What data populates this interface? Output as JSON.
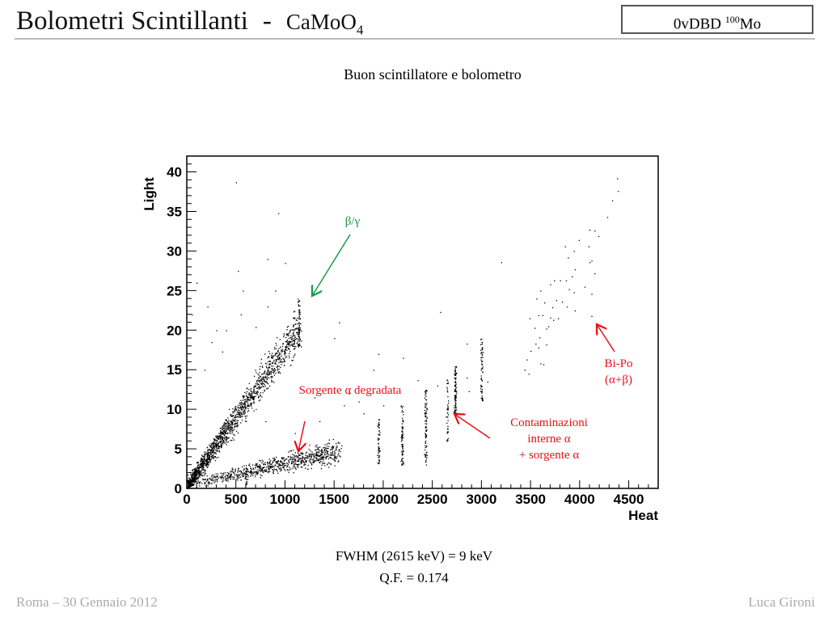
{
  "header": {
    "title": "Bolometri Scintillanti",
    "dash": "-",
    "formula": "CaMoO",
    "formula_sub": "4",
    "badge_text": "0vDBD ",
    "badge_sup": "100",
    "badge_tail": "Mo"
  },
  "subtitle": "Buon scintillatore e bolometro",
  "results": {
    "fwhm": "FWHM (2615 keV) = 9 keV",
    "qf": "Q.F. = 0.174"
  },
  "footer": {
    "left": "Roma – 30 Gennaio 2012",
    "right": "Luca Gironi"
  },
  "chart_data": {
    "type": "scatter",
    "xlabel": "Heat",
    "ylabel": "Light",
    "xlim": [
      0,
      4800
    ],
    "ylim": [
      0,
      42
    ],
    "xticks": [
      0,
      500,
      1000,
      1500,
      2000,
      2500,
      3000,
      3500,
      4000,
      4500
    ],
    "yticks": [
      0,
      5,
      10,
      15,
      20,
      25,
      30,
      35,
      40
    ],
    "grid": false,
    "bands": [
      {
        "name": "beta-gamma",
        "x": [
          0,
          1150
        ],
        "intercept": 0.3,
        "slope": 0.0175,
        "spread": 0.9,
        "count": 1600
      },
      {
        "name": "alpha",
        "x": [
          40,
          1560
        ],
        "intercept": 0.6,
        "slope": 0.0027,
        "spread": 0.5,
        "count": 800
      }
    ],
    "lines": [
      {
        "x": 1140,
        "y": [
          18,
          24
        ],
        "count": 60
      },
      {
        "x": 600,
        "y": [
          0.5,
          3
        ],
        "count": 20
      },
      {
        "x": 1950,
        "y": [
          3,
          9
        ],
        "count": 50
      },
      {
        "x": 2190,
        "y": [
          3,
          10.5
        ],
        "count": 70
      },
      {
        "x": 2430,
        "y": [
          3,
          12.5
        ],
        "count": 90
      },
      {
        "x": 2650,
        "y": [
          6,
          14
        ],
        "count": 40
      },
      {
        "x": 2730,
        "y": [
          9.5,
          15.5
        ],
        "count": 90
      },
      {
        "x": 3000,
        "y": [
          11,
          19
        ],
        "count": 60
      }
    ],
    "outliers": [
      [
        500,
        38.7
      ],
      [
        930,
        34.8
      ],
      [
        520,
        27.5
      ],
      [
        820,
        29
      ],
      [
        1000,
        28.5
      ],
      [
        570,
        25
      ],
      [
        900,
        25
      ],
      [
        210,
        23
      ],
      [
        550,
        22
      ],
      [
        820,
        23
      ],
      [
        1550,
        21
      ],
      [
        1500,
        19
      ],
      [
        2580,
        22.3
      ],
      [
        3200,
        28.6
      ],
      [
        1950,
        17
      ],
      [
        2200,
        16.5
      ],
      [
        300,
        20
      ],
      [
        400,
        20
      ],
      [
        700,
        20.4
      ],
      [
        250,
        18.5
      ],
      [
        360,
        17.3
      ],
      [
        180,
        15
      ],
      [
        100,
        26
      ],
      [
        50,
        22
      ],
      [
        1300,
        11.5
      ],
      [
        1750,
        11
      ],
      [
        2350,
        13.7
      ],
      [
        2850,
        18.3
      ],
      [
        1100,
        7
      ],
      [
        800,
        8.5
      ],
      [
        1350,
        8.5
      ],
      [
        1800,
        9.5
      ],
      [
        1900,
        15
      ],
      [
        2000,
        10.5
      ],
      [
        1600,
        10.5
      ],
      [
        1650,
        12
      ],
      [
        2550,
        13
      ],
      [
        2850,
        14
      ],
      [
        2870,
        12.3
      ],
      [
        3060,
        13.5
      ]
    ],
    "bipo": [
      [
        4380,
        39.2
      ],
      [
        4390,
        37.6
      ],
      [
        4280,
        34.3
      ],
      [
        4330,
        36.4
      ],
      [
        4100,
        32.7
      ],
      [
        4150,
        32.6
      ],
      [
        4190,
        31.9
      ],
      [
        4090,
        30.6
      ],
      [
        3990,
        31.4
      ],
      [
        3940,
        30
      ],
      [
        3850,
        30.6
      ],
      [
        3880,
        29.2
      ],
      [
        4120,
        28.8
      ],
      [
        4100,
        28.6
      ],
      [
        3950,
        27.7
      ],
      [
        3920,
        26.8
      ],
      [
        4150,
        27.2
      ],
      [
        3740,
        26.3
      ],
      [
        3700,
        25.8
      ],
      [
        3800,
        26.3
      ],
      [
        3860,
        26.3
      ],
      [
        3890,
        25.2
      ],
      [
        4050,
        25.5
      ],
      [
        3600,
        25
      ],
      [
        3940,
        24.8
      ],
      [
        4120,
        24.6
      ],
      [
        3560,
        24
      ],
      [
        3640,
        23.5
      ],
      [
        3820,
        23.6
      ],
      [
        3870,
        23
      ],
      [
        3760,
        23.8
      ],
      [
        3720,
        22.9
      ],
      [
        3950,
        22.5
      ],
      [
        3490,
        21.5
      ],
      [
        3580,
        21.9
      ],
      [
        3620,
        21.9
      ],
      [
        3700,
        21.6
      ],
      [
        3730,
        21.3
      ],
      [
        3780,
        21.5
      ],
      [
        4120,
        21.8
      ],
      [
        3680,
        20.5
      ],
      [
        3540,
        20.3
      ],
      [
        3660,
        20.2
      ],
      [
        3590,
        19.1
      ],
      [
        3550,
        18.3
      ],
      [
        3500,
        17.4
      ],
      [
        3580,
        17.8
      ],
      [
        3660,
        18.2
      ],
      [
        3460,
        16.3
      ],
      [
        3600,
        15.8
      ],
      [
        3630,
        15.7
      ],
      [
        3440,
        15
      ],
      [
        3480,
        14.5
      ]
    ]
  },
  "annotations": {
    "beta_gamma": "β/γ",
    "alpha_source": "Sorgente α degradata",
    "internal_1": "Contaminazioni",
    "internal_2": "interne α",
    "internal_3": "+ sorgente α",
    "bipo_1": "Bi-Po",
    "bipo_2": "(α+β)"
  },
  "colors": {
    "green": "#1a9a4a",
    "red": "#e8101a"
  }
}
